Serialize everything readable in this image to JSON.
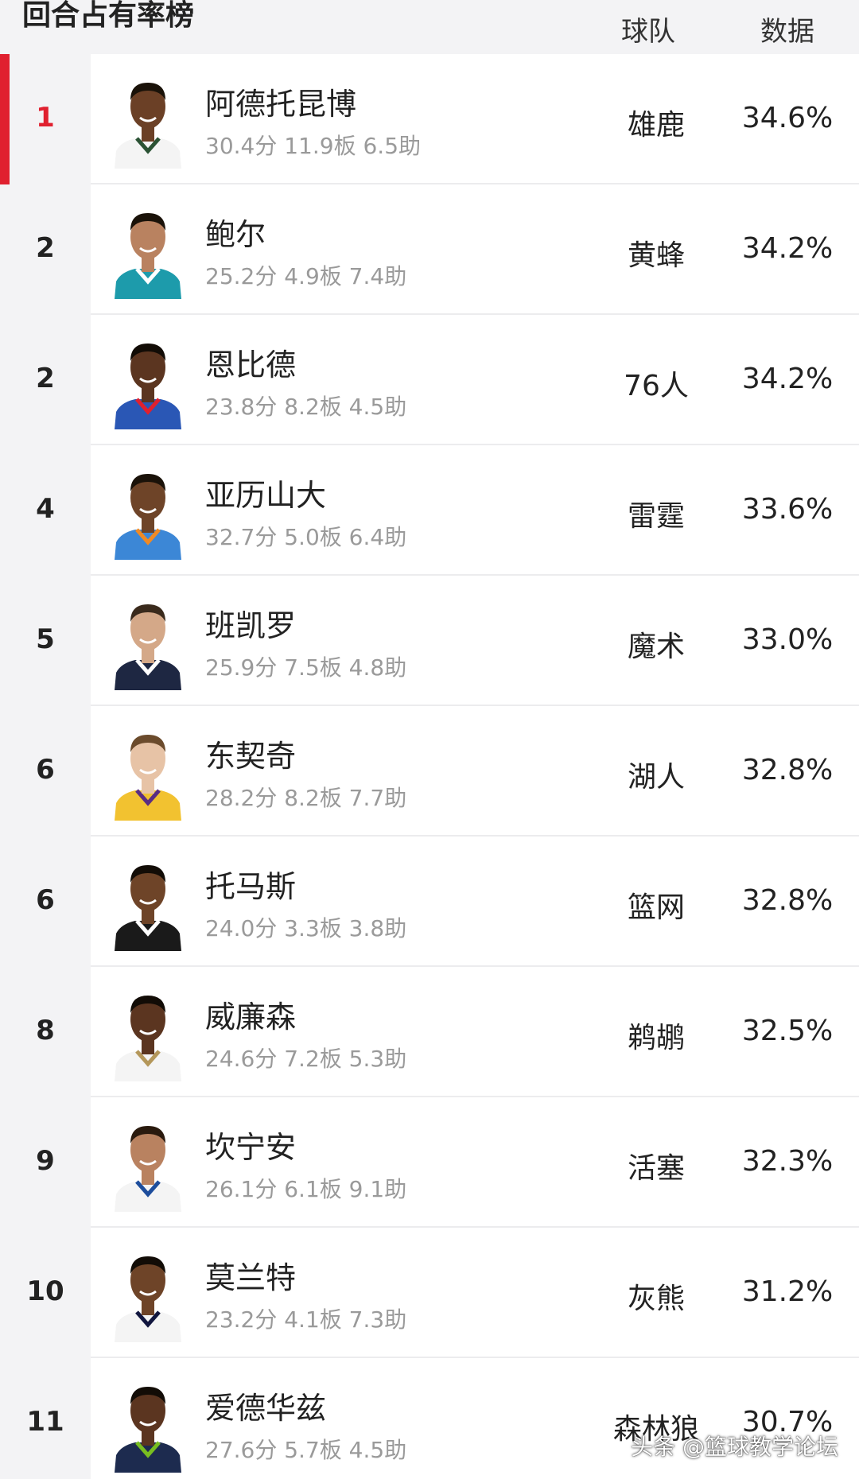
{
  "header": {
    "title": "回合占有率榜",
    "col_team": "球队",
    "col_data": "数据"
  },
  "colors": {
    "accent": "#e0202f",
    "rank_bg": "#f3f3f5",
    "stats_text": "#9a9a9a"
  },
  "rows": [
    {
      "rank": "1",
      "name": "阿德托昆博",
      "stats": "30.4分  11.9板  6.5助",
      "team": "雄鹿",
      "value": "34.6%",
      "jersey": "#f4f4f4",
      "trim": "#2b5234",
      "skin": "#6b4026",
      "hair": "#1a1209"
    },
    {
      "rank": "2",
      "name": "鲍尔",
      "stats": "25.2分  4.9板  7.4助",
      "team": "黄蜂",
      "value": "34.2%",
      "jersey": "#1d9bab",
      "trim": "#ffffff",
      "skin": "#b98260",
      "hair": "#1a1209"
    },
    {
      "rank": "2",
      "name": "恩比德",
      "stats": "23.8分  8.2板  4.5助",
      "team": "76人",
      "value": "34.2%",
      "jersey": "#2a57b5",
      "trim": "#e0202f",
      "skin": "#5b3520",
      "hair": "#120c06"
    },
    {
      "rank": "4",
      "name": "亚历山大",
      "stats": "32.7分  5.0板  6.4助",
      "team": "雷霆",
      "value": "33.6%",
      "jersey": "#3c87d6",
      "trim": "#f08a24",
      "skin": "#6e4428",
      "hair": "#1a1209"
    },
    {
      "rank": "5",
      "name": "班凯罗",
      "stats": "25.9分  7.5板  4.8助",
      "team": "魔术",
      "value": "33.0%",
      "jersey": "#1e2742",
      "trim": "#ffffff",
      "skin": "#d4a888",
      "hair": "#3a2a1c"
    },
    {
      "rank": "6",
      "name": "东契奇",
      "stats": "28.2分  8.2板  7.7助",
      "team": "湖人",
      "value": "32.8%",
      "jersey": "#f2c230",
      "trim": "#5a2d82",
      "skin": "#e7c3a6",
      "hair": "#6b4b2c"
    },
    {
      "rank": "6",
      "name": "托马斯",
      "stats": "24.0分  3.3板  3.8助",
      "team": "篮网",
      "value": "32.8%",
      "jersey": "#1a1a1a",
      "trim": "#ffffff",
      "skin": "#6e4428",
      "hair": "#120c06"
    },
    {
      "rank": "8",
      "name": "威廉森",
      "stats": "24.6分  7.2板  5.3助",
      "team": "鹈鹕",
      "value": "32.5%",
      "jersey": "#f4f4f4",
      "trim": "#b4975a",
      "skin": "#5b3520",
      "hair": "#120c06"
    },
    {
      "rank": "9",
      "name": "坎宁安",
      "stats": "26.1分  6.1板  9.1助",
      "team": "活塞",
      "value": "32.3%",
      "jersey": "#f4f4f4",
      "trim": "#1d4d9c",
      "skin": "#b98260",
      "hair": "#2a1a0e"
    },
    {
      "rank": "10",
      "name": "莫兰特",
      "stats": "23.2分  4.1板  7.3助",
      "team": "灰熊",
      "value": "31.2%",
      "jersey": "#f4f4f4",
      "trim": "#12173f",
      "skin": "#6e4428",
      "hair": "#120c06"
    },
    {
      "rank": "11",
      "name": "爱德华兹",
      "stats": "27.6分  5.7板  4.5助",
      "team": "森林狼",
      "value": "30.7%",
      "jersey": "#1d2b4f",
      "trim": "#78be20",
      "skin": "#5b3520",
      "hair": "#120c06"
    }
  ],
  "watermark": "头条 @篮球教学论坛"
}
